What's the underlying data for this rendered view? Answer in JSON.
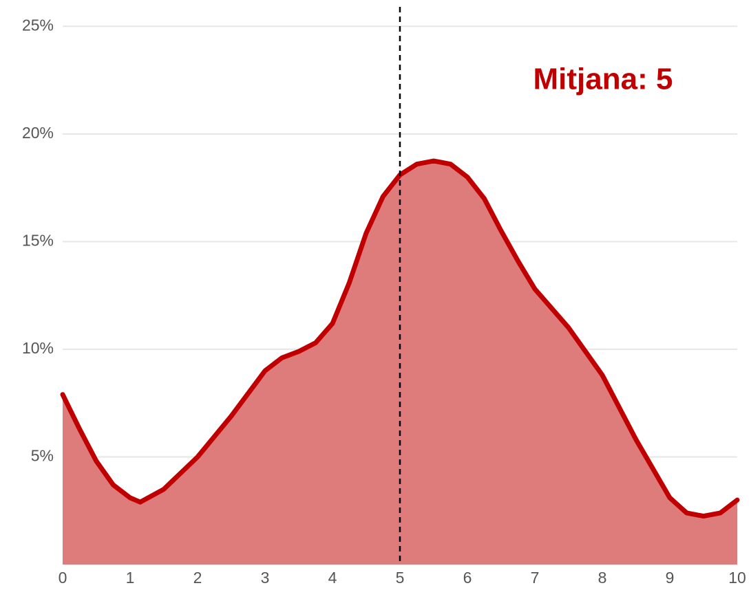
{
  "chart_data": {
    "type": "area",
    "annotation": "Mitjana: 5",
    "vline": 5,
    "x": [
      0,
      0.25,
      0.5,
      0.75,
      1.0,
      1.15,
      1.5,
      2.0,
      2.5,
      3.0,
      3.25,
      3.5,
      3.75,
      4.0,
      4.25,
      4.5,
      4.75,
      5.0,
      5.25,
      5.5,
      5.75,
      6.0,
      6.25,
      6.5,
      6.75,
      7.0,
      7.5,
      8.0,
      8.5,
      9.0,
      9.25,
      9.5,
      9.75,
      10
    ],
    "series": [
      {
        "color": "#c00000",
        "fill": "#de7b7b",
        "values": [
          7.9,
          6.3,
          4.8,
          3.7,
          3.1,
          2.9,
          3.5,
          5.0,
          6.9,
          9.0,
          9.6,
          9.9,
          10.3,
          11.2,
          13.1,
          15.4,
          17.1,
          18.1,
          18.6,
          18.75,
          18.6,
          18.0,
          17.0,
          15.5,
          14.1,
          12.8,
          11.0,
          8.8,
          5.8,
          3.1,
          2.4,
          2.25,
          2.4,
          3.0
        ]
      }
    ],
    "xlim": [
      0,
      10
    ],
    "xticks": [
      0,
      1,
      2,
      3,
      4,
      5,
      6,
      7,
      8,
      9,
      10
    ],
    "ylim": [
      0,
      26
    ],
    "yticks": [
      {
        "value": 5,
        "label": "5%"
      },
      {
        "value": 10,
        "label": "10%"
      },
      {
        "value": 15,
        "label": "15%"
      },
      {
        "value": 20,
        "label": "20%"
      },
      {
        "value": 25,
        "label": "25%"
      }
    ],
    "grid": true
  }
}
